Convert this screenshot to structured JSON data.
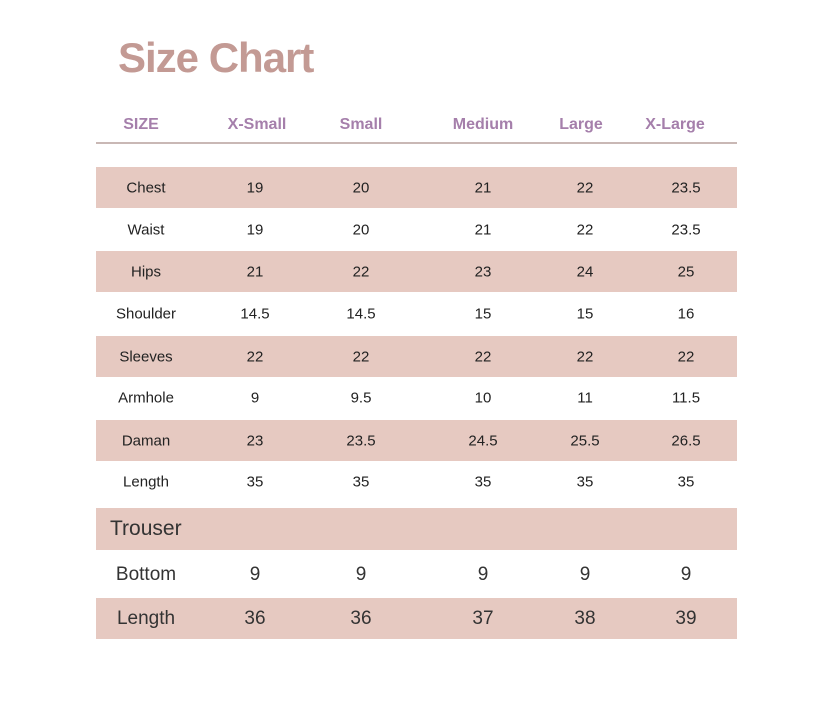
{
  "title": "Size Chart",
  "headers": [
    "SIZE",
    "X-Small",
    "Small",
    "Medium",
    "Large",
    "X-Large"
  ],
  "colors": {
    "title": "#c39a94",
    "header": "#a57fab",
    "row_shade": "#e6c9c1"
  },
  "rows": [
    {
      "label": "Chest",
      "values": [
        "19",
        "20",
        "21",
        "22",
        "23.5"
      ],
      "shaded": true
    },
    {
      "label": "Waist",
      "values": [
        "19",
        "20",
        "21",
        "22",
        "23.5"
      ],
      "shaded": false
    },
    {
      "label": "Hips",
      "values": [
        "21",
        "22",
        "23",
        "24",
        "25"
      ],
      "shaded": true
    },
    {
      "label": "Shoulder",
      "values": [
        "14.5",
        "14.5",
        "15",
        "15",
        "16"
      ],
      "shaded": false
    },
    {
      "label": "Sleeves",
      "values": [
        "22",
        "22",
        "22",
        "22",
        "22"
      ],
      "shaded": true
    },
    {
      "label": "Armhole",
      "values": [
        "9",
        "9.5",
        "10",
        "11",
        "11.5"
      ],
      "shaded": false
    },
    {
      "label": "Daman",
      "values": [
        "23",
        "23.5",
        "24.5",
        "25.5",
        "26.5"
      ],
      "shaded": true
    },
    {
      "label": "Length",
      "values": [
        "35",
        "35",
        "35",
        "35",
        "35"
      ],
      "shaded": false
    }
  ],
  "trouser": {
    "section_label": "Trouser",
    "rows": [
      {
        "label": "Bottom",
        "values": [
          "9",
          "9",
          "9",
          "9",
          "9"
        ],
        "shaded": false
      },
      {
        "label": "Length",
        "values": [
          "36",
          "36",
          "37",
          "38",
          "39"
        ],
        "shaded": true
      }
    ]
  }
}
